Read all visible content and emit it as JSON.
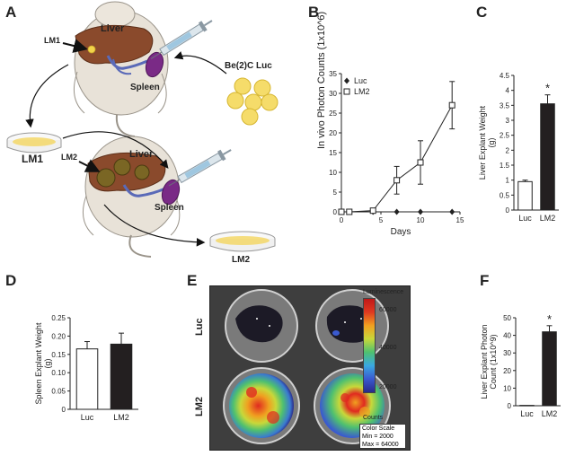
{
  "panels": {
    "a": "A",
    "b": "B",
    "c": "C",
    "d": "D",
    "e": "E",
    "f": "F"
  },
  "schematic": {
    "liver_top": "Liver",
    "lm1_arrow": "LM1",
    "spleen_top": "Spleen",
    "cells": "Be(2)C Luc",
    "dish1": "LM1",
    "liver_bottom": "Liver",
    "lm2_arrow": "LM2",
    "spleen_bottom": "Spleen",
    "dish2": "LM2"
  },
  "colorbar": {
    "title": "Luminescence",
    "ticks": [
      "60000",
      "40000",
      "20000"
    ],
    "units": "Counts",
    "scale_label": "Color Scale",
    "min": "Min = 2000",
    "max": "Max = 64000",
    "colors": [
      "#2a2a8a",
      "#3a5ad0",
      "#3aa8e0",
      "#4ec070",
      "#c8d83a",
      "#f0a020",
      "#e03a20",
      "#c01818"
    ]
  },
  "imaging_rows": [
    "Luc",
    "LM2"
  ],
  "chart_data": [
    {
      "id": "B",
      "type": "line",
      "ylabel": "In vivo Photon Counts (1x10^6)",
      "xlabel": "Days",
      "xlim": [
        0,
        15
      ],
      "ylim": [
        0,
        35
      ],
      "xticks": [
        0,
        5,
        10,
        15
      ],
      "yticks": [
        0,
        5,
        10,
        15,
        20,
        25,
        30,
        35
      ],
      "legend_position": "top-left",
      "series": [
        {
          "name": "Luc",
          "marker": "diamond",
          "x": [
            0,
            1,
            4,
            7,
            10,
            14
          ],
          "y": [
            0,
            0,
            0,
            0,
            0,
            0
          ],
          "err": [
            0,
            0,
            0,
            0,
            0,
            0
          ]
        },
        {
          "name": "LM2",
          "marker": "square",
          "x": [
            0,
            1,
            4,
            7,
            10,
            14
          ],
          "y": [
            0,
            0,
            0.3,
            8,
            12.5,
            27
          ],
          "err": [
            0,
            0,
            0,
            3.5,
            5.5,
            6
          ]
        }
      ]
    },
    {
      "id": "C",
      "type": "bar",
      "ylabel": "Liver Explant Weight (g)",
      "categories": [
        "Luc",
        "LM2"
      ],
      "values": [
        0.95,
        3.55
      ],
      "err": [
        0.05,
        0.3
      ],
      "colors": [
        "#ffffff",
        "#231f20"
      ],
      "ylim": [
        0,
        4.5
      ],
      "yticks": [
        "0",
        "0.5",
        "1",
        "1.5",
        "2",
        "2.5",
        "3",
        "3.5",
        "4",
        "4.5"
      ],
      "annotation": "*"
    },
    {
      "id": "D",
      "type": "bar",
      "ylabel": "Spleen Explant Weight (g)",
      "categories": [
        "Luc",
        "LM2"
      ],
      "values": [
        0.165,
        0.178
      ],
      "err": [
        0.02,
        0.03
      ],
      "colors": [
        "#ffffff",
        "#231f20"
      ],
      "ylim": [
        0,
        0.25
      ],
      "yticks": [
        "0",
        "0.05",
        "0.10",
        "0.15",
        "0.20",
        "0.25"
      ]
    },
    {
      "id": "F",
      "type": "bar",
      "ylabel": "Liver Explant Photon Count (1x10^9)",
      "categories": [
        "Luc",
        "LM2"
      ],
      "values": [
        0.2,
        42
      ],
      "err": [
        0,
        3.5
      ],
      "colors": [
        "#ffffff",
        "#231f20"
      ],
      "ylim": [
        0,
        50
      ],
      "yticks": [
        "0",
        "10",
        "20",
        "30",
        "40",
        "50"
      ],
      "annotation": "*"
    }
  ]
}
